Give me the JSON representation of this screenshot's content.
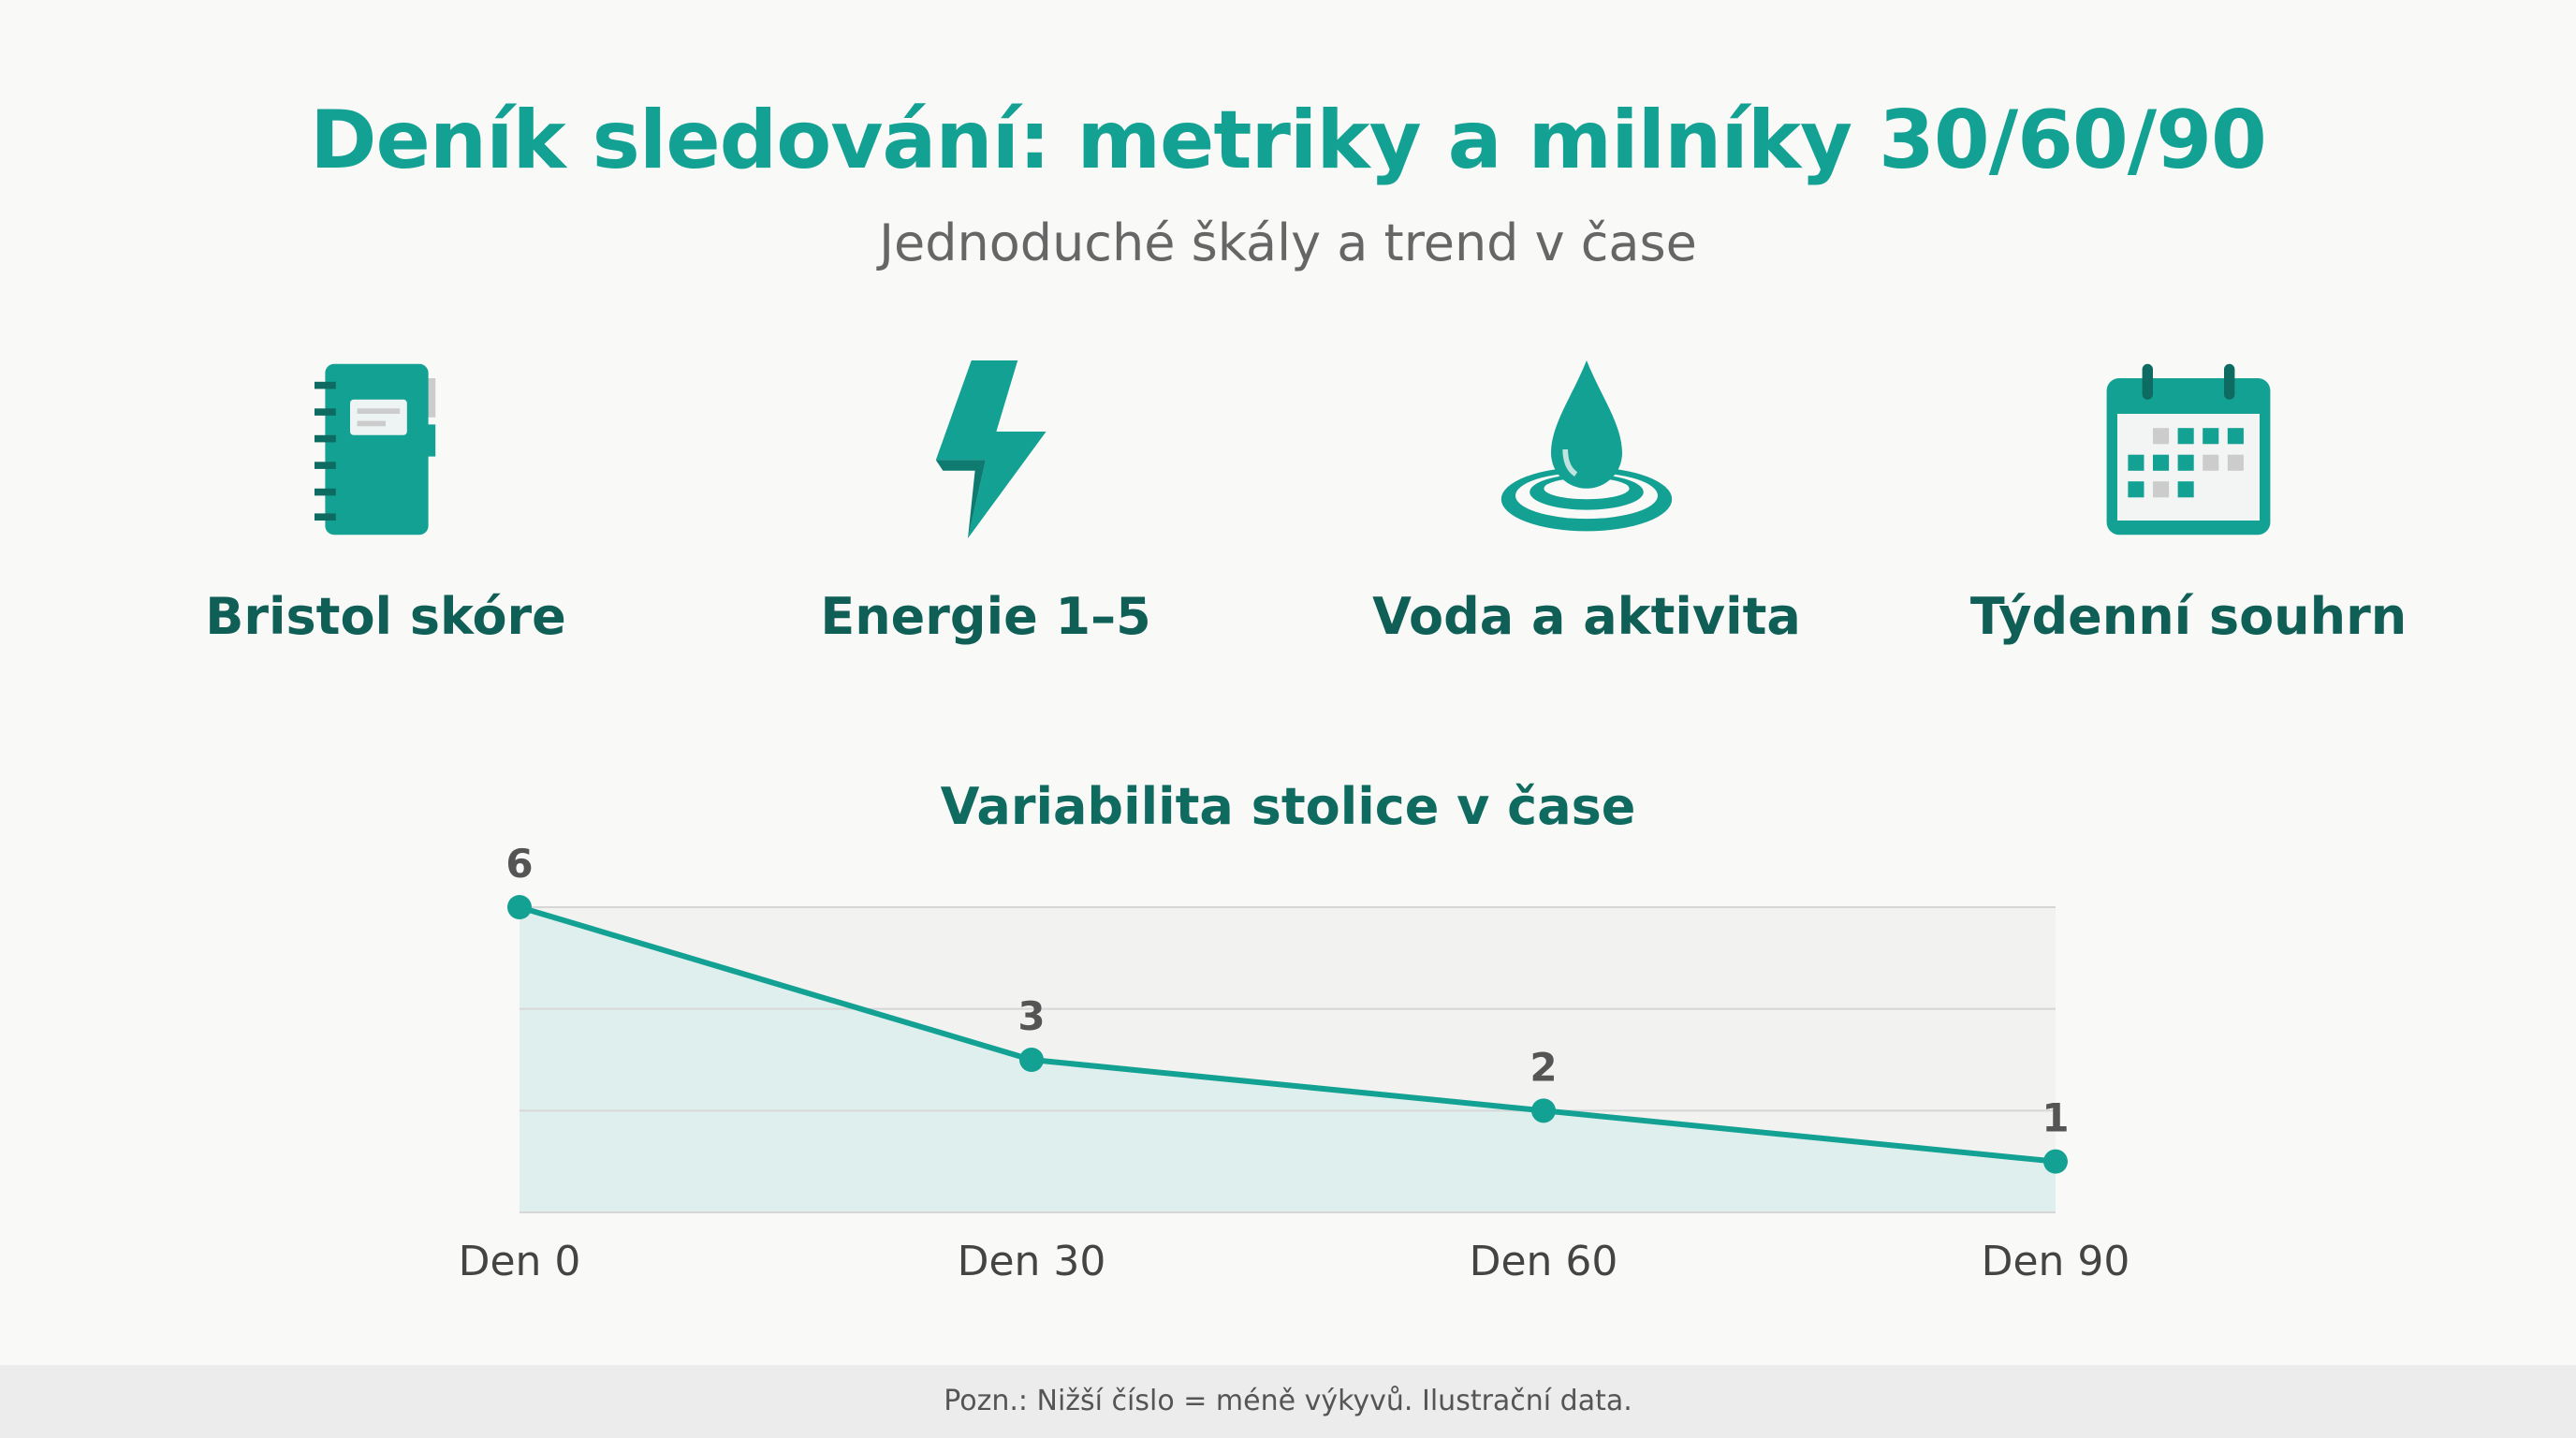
{
  "header": {
    "title": "Deník sledování: metriky a milníky 30/60/90",
    "subtitle": "Jednoduché škály a trend v čase"
  },
  "features": [
    {
      "label": "Bristol skóre",
      "icon": "notebook-icon"
    },
    {
      "label": "Energie 1–5",
      "icon": "lightning-icon"
    },
    {
      "label": "Voda a aktivita",
      "icon": "water-drop-icon"
    },
    {
      "label": "Týdenní souhrn",
      "icon": "calendar-icon"
    }
  ],
  "colors": {
    "accent": "#13a193",
    "dark": "#0f5f57",
    "fill": "#dcefec"
  },
  "chart_data": {
    "type": "area",
    "title": "Variabilita stolice v čase",
    "categories": [
      "Den 0",
      "Den 30",
      "Den 60",
      "Den 90"
    ],
    "values": [
      6,
      3,
      2,
      1
    ],
    "data_labels": [
      "6",
      "3",
      "2",
      "1"
    ],
    "ylim": [
      0,
      6
    ],
    "grid": true
  },
  "footer": {
    "note": "Pozn.: Nižší číslo = méně výkyvů. Ilustrační data."
  }
}
